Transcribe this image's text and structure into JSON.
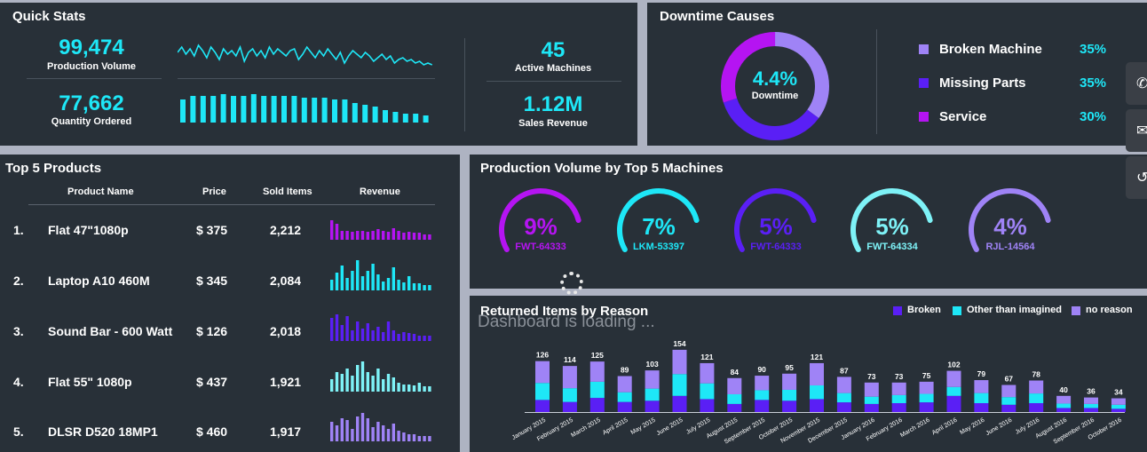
{
  "quick_stats": {
    "title": "Quick Stats",
    "production_volume": {
      "value": "99,474",
      "label": "Production Volume"
    },
    "quantity_ordered": {
      "value": "77,662",
      "label": "Quantity Ordered"
    },
    "active_machines": {
      "value": "45",
      "label": "Active Machines"
    },
    "sales_revenue": {
      "value": "1.12M",
      "label": "Sales Revenue"
    },
    "accent": "#1ee7f7"
  },
  "downtime": {
    "title": "Downtime Causes",
    "center_value": "4.4%",
    "center_label": "Downtime",
    "items": [
      {
        "label": "Broken Machine",
        "pct": "35%",
        "color": "#9f83f6"
      },
      {
        "label": "Missing Parts",
        "pct": "35%",
        "color": "#5a1ff5"
      },
      {
        "label": "Service",
        "pct": "30%",
        "color": "#b514f2"
      }
    ]
  },
  "top_products": {
    "title": "Top 5 Products",
    "headers": [
      "Product Name",
      "Price",
      "Sold Items",
      "Revenue"
    ],
    "rows": [
      {
        "num": "1.",
        "name": "Flat 47\"1080p",
        "price": "$ 375",
        "sold": "2,212",
        "color": "#b514f2"
      },
      {
        "num": "2.",
        "name": "Laptop A10 460M",
        "price": "$ 345",
        "sold": "2,084",
        "color": "#1ee7f7"
      },
      {
        "num": "3.",
        "name": "Sound Bar - 600 Watt",
        "price": "$ 126",
        "sold": "2,018",
        "color": "#5a1ff5"
      },
      {
        "num": "4.",
        "name": "Flat 55\" 1080p",
        "price": "$ 437",
        "sold": "1,921",
        "color": "#7ef2f7"
      },
      {
        "num": "5.",
        "name": "DLSR D520 18MP1",
        "price": "$ 460",
        "sold": "1,917",
        "color": "#9f83f6"
      }
    ]
  },
  "machines": {
    "title": "Production Volume by Top 5 Machines",
    "items": [
      {
        "pct": "9%",
        "name": "FWT-64333",
        "color": "#b514f2"
      },
      {
        "pct": "7%",
        "name": "LKM-53397",
        "color": "#1ee7f7"
      },
      {
        "pct": "5%",
        "name": "FWT-64333",
        "color": "#5a1ff5"
      },
      {
        "pct": "5%",
        "name": "FWT-64334",
        "color": "#7ef2f7"
      },
      {
        "pct": "4%",
        "name": "RJL-14564",
        "color": "#9f83f6"
      }
    ]
  },
  "returned": {
    "title": "Returned Items by Reason",
    "loading_text": "Dashboard is loading ..."
  },
  "chart_data": {
    "type": "bar",
    "title": "Returned Items by Reason",
    "stacked": true,
    "categories": [
      "January 2015",
      "February 2015",
      "March 2015",
      "April 2015",
      "May 2015",
      "June 2015",
      "July 2015",
      "August 2015",
      "September 2015",
      "October 2015",
      "November 2015",
      "December 2015",
      "January 2016",
      "February 2016",
      "March 2016",
      "April 2016",
      "May 2016",
      "June 2016",
      "July 2016",
      "August 2016",
      "September 2016",
      "October 2016"
    ],
    "totals": [
      126,
      114,
      125,
      89,
      103,
      154,
      121,
      84,
      90,
      95,
      121,
      87,
      73,
      73,
      75,
      102,
      79,
      67,
      78,
      40,
      36,
      34
    ],
    "series": [
      {
        "name": "Broken",
        "color": "#5a1ff5",
        "values": [
          30,
          25,
          35,
          25,
          28,
          40,
          32,
          20,
          30,
          28,
          32,
          24,
          20,
          22,
          24,
          40,
          22,
          18,
          22,
          10,
          10,
          8
        ]
      },
      {
        "name": "Other than imagined",
        "color": "#1ee7f7",
        "values": [
          42,
          34,
          40,
          24,
          30,
          54,
          39,
          24,
          24,
          27,
          34,
          23,
          18,
          20,
          21,
          22,
          25,
          19,
          24,
          11,
          10,
          10
        ]
      },
      {
        "name": "no reason",
        "color": "#9f83f6",
        "values": [
          54,
          55,
          50,
          40,
          45,
          60,
          50,
          40,
          36,
          40,
          55,
          40,
          35,
          31,
          30,
          40,
          32,
          30,
          32,
          19,
          16,
          16
        ]
      }
    ],
    "legend": "top-right"
  }
}
